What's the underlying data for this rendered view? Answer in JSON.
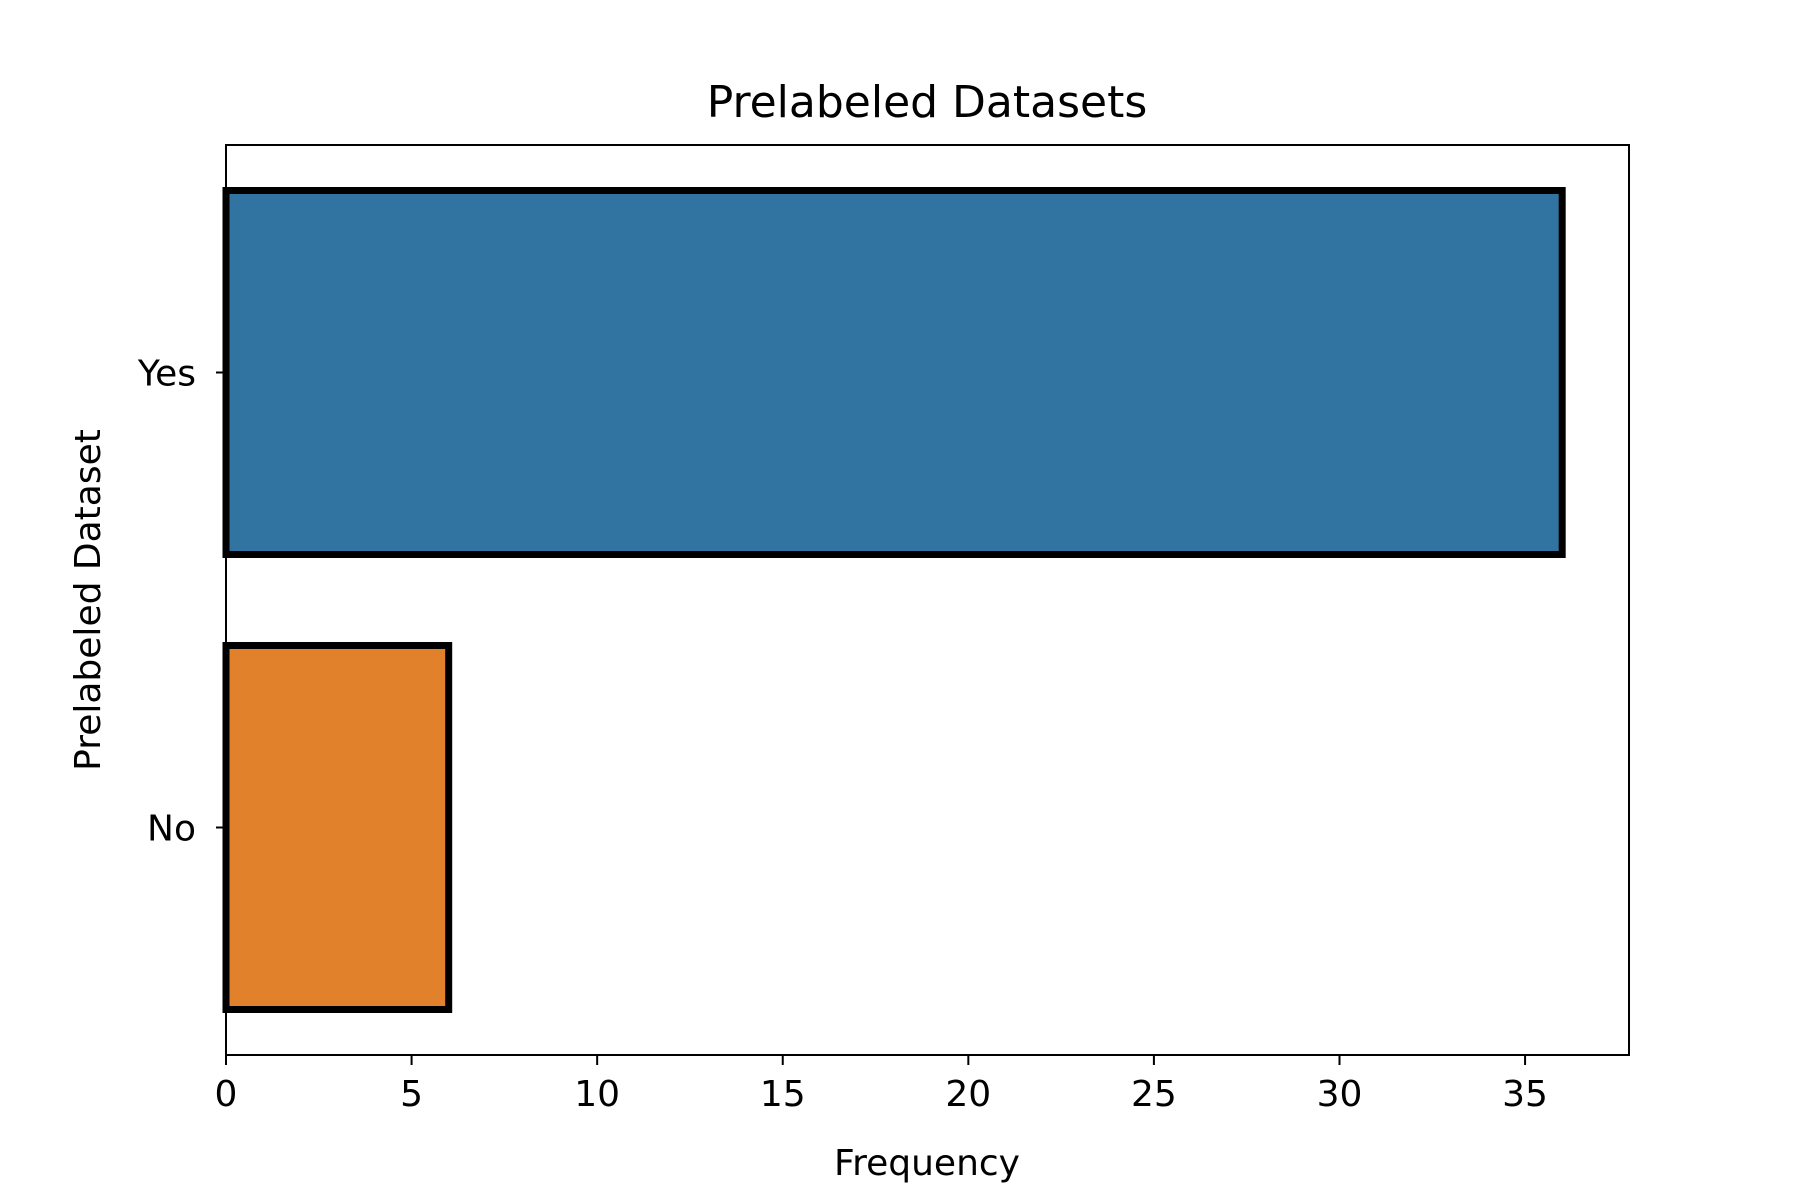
{
  "chart_data": {
    "type": "bar",
    "orientation": "horizontal",
    "title": "Prelabeled Datasets",
    "xlabel": "Frequency",
    "ylabel": "Prelabeled Dataset",
    "categories": [
      "Yes",
      "No"
    ],
    "values": [
      36,
      6
    ],
    "colors": [
      "#3274a1",
      "#e1812c"
    ],
    "edge_color": "#000000",
    "xlim": [
      0,
      37.8
    ],
    "xticks": [
      0,
      5,
      10,
      15,
      20,
      25,
      30,
      35
    ],
    "grid": false,
    "legend": "none"
  }
}
